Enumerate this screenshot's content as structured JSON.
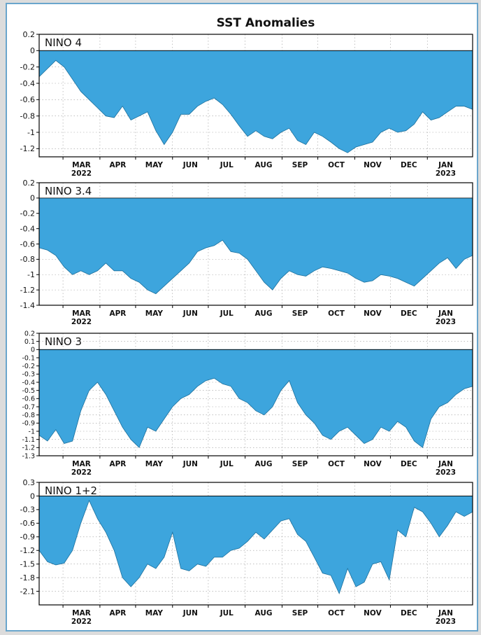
{
  "title": "SST Anomalies",
  "colors": {
    "fill": "#3da5dd",
    "frame": "#6aa6cc",
    "grid": "#9a9a9a"
  },
  "month_labels": [
    "MAR",
    "APR",
    "MAY",
    "JUN",
    "JUL",
    "AUG",
    "SEP",
    "OCT",
    "NOV",
    "DEC",
    "JAN"
  ],
  "year_labels": {
    "MAR": "2022",
    "JAN": "2023"
  },
  "chart_data": [
    {
      "type": "area",
      "title": "NINO 4",
      "xlabel": "",
      "ylabel": "",
      "x_unit": "weeks since 2022-02-09 (centre of weekly mean)",
      "grid": true,
      "ylim": [
        -1.3,
        0.2
      ],
      "yticks": [
        0.2,
        0,
        -0.2,
        -0.4,
        -0.6,
        -0.8,
        -1,
        -1.2
      ],
      "series": [
        {
          "values": [
            -0.32,
            -0.22,
            -0.12,
            -0.2,
            -0.35,
            -0.5,
            -0.6,
            -0.7,
            -0.8,
            -0.82,
            -0.68,
            -0.85,
            -0.8,
            -0.75,
            -0.98,
            -1.15,
            -1.0,
            -0.78,
            -0.78,
            -0.68,
            -0.62,
            -0.58,
            -0.66,
            -0.78,
            -0.92,
            -1.05,
            -0.98,
            -1.05,
            -1.08,
            -1.0,
            -0.95,
            -1.1,
            -1.15,
            -1.0,
            -1.05,
            -1.12,
            -1.2,
            -1.25,
            -1.18,
            -1.15,
            -1.12,
            -1.0,
            -0.95,
            -1.0,
            -0.98,
            -0.9,
            -0.75,
            -0.85,
            -0.82,
            -0.75,
            -0.68,
            -0.68,
            -0.72
          ]
        }
      ]
    },
    {
      "type": "area",
      "title": "NINO 3.4",
      "xlabel": "",
      "ylabel": "",
      "x_unit": "weeks since 2022-02-09 (centre of weekly mean)",
      "grid": true,
      "ylim": [
        -1.4,
        0.2
      ],
      "yticks": [
        0.2,
        0,
        -0.2,
        -0.4,
        -0.6,
        -0.8,
        -1,
        -1.2,
        -1.4
      ],
      "series": [
        {
          "values": [
            -0.65,
            -0.68,
            -0.75,
            -0.9,
            -1.0,
            -0.95,
            -1.0,
            -0.95,
            -0.85,
            -0.95,
            -0.95,
            -1.05,
            -1.1,
            -1.2,
            -1.25,
            -1.15,
            -1.05,
            -0.95,
            -0.85,
            -0.7,
            -0.65,
            -0.62,
            -0.55,
            -0.7,
            -0.72,
            -0.8,
            -0.95,
            -1.1,
            -1.2,
            -1.05,
            -0.95,
            -1.0,
            -1.02,
            -0.95,
            -0.9,
            -0.92,
            -0.95,
            -0.98,
            -1.05,
            -1.1,
            -1.08,
            -1.0,
            -1.02,
            -1.05,
            -1.1,
            -1.15,
            -1.05,
            -0.95,
            -0.85,
            -0.78,
            -0.92,
            -0.8,
            -0.75
          ]
        }
      ]
    },
    {
      "type": "area",
      "title": "NINO 3",
      "xlabel": "",
      "ylabel": "",
      "x_unit": "weeks since 2022-02-09 (centre of weekly mean)",
      "grid": true,
      "ylim": [
        -1.3,
        0.2
      ],
      "yticks": [
        0.2,
        0.1,
        0,
        -0.1,
        -0.2,
        -0.3,
        -0.4,
        -0.5,
        -0.6,
        -0.7,
        -0.8,
        -0.9,
        -1,
        -1.1,
        -1.2,
        -1.3
      ],
      "ytick_labels": [
        "0.2",
        "0.1",
        "0",
        "-0.1",
        "-0.2",
        "-0.3",
        "-0.4",
        "-0.5",
        "-0.6",
        "-0.7",
        "-0.8",
        "-0.9",
        "-1",
        "-1.1",
        "-1.2",
        "-1.3"
      ],
      "series": [
        {
          "values": [
            -1.05,
            -1.12,
            -0.98,
            -1.15,
            -1.12,
            -0.75,
            -0.5,
            -0.4,
            -0.55,
            -0.75,
            -0.95,
            -1.1,
            -1.2,
            -0.95,
            -1.0,
            -0.85,
            -0.7,
            -0.6,
            -0.55,
            -0.45,
            -0.38,
            -0.35,
            -0.42,
            -0.45,
            -0.6,
            -0.65,
            -0.75,
            -0.8,
            -0.7,
            -0.5,
            -0.38,
            -0.65,
            -0.8,
            -0.9,
            -1.05,
            -1.1,
            -1.0,
            -0.95,
            -1.05,
            -1.15,
            -1.1,
            -0.95,
            -1.0,
            -0.88,
            -0.95,
            -1.12,
            -1.2,
            -0.85,
            -0.7,
            -0.65,
            -0.55,
            -0.48,
            -0.45
          ]
        }
      ]
    },
    {
      "type": "area",
      "title": "NINO 1+2",
      "xlabel": "",
      "ylabel": "",
      "x_unit": "weeks since 2022-02-09 (centre of weekly mean)",
      "grid": true,
      "ylim": [
        -2.4,
        0.3
      ],
      "yticks": [
        0.3,
        0,
        -0.3,
        -0.6,
        -0.9,
        -1.2,
        -1.5,
        -1.8,
        -2.1
      ],
      "series": [
        {
          "values": [
            -1.2,
            -1.45,
            -1.52,
            -1.48,
            -1.2,
            -0.6,
            -0.1,
            -0.5,
            -0.8,
            -1.2,
            -1.8,
            -2.0,
            -1.8,
            -1.5,
            -1.6,
            -1.35,
            -0.8,
            -1.6,
            -1.65,
            -1.5,
            -1.55,
            -1.35,
            -1.35,
            -1.2,
            -1.15,
            -1.0,
            -0.8,
            -0.95,
            -0.75,
            -0.55,
            -0.5,
            -0.85,
            -1.0,
            -1.35,
            -1.7,
            -1.75,
            -2.15,
            -1.6,
            -2.0,
            -1.9,
            -1.5,
            -1.45,
            -1.85,
            -0.75,
            -0.9,
            -0.25,
            -0.35,
            -0.6,
            -0.9,
            -0.65,
            -0.35,
            -0.45,
            -0.35
          ]
        }
      ]
    }
  ]
}
